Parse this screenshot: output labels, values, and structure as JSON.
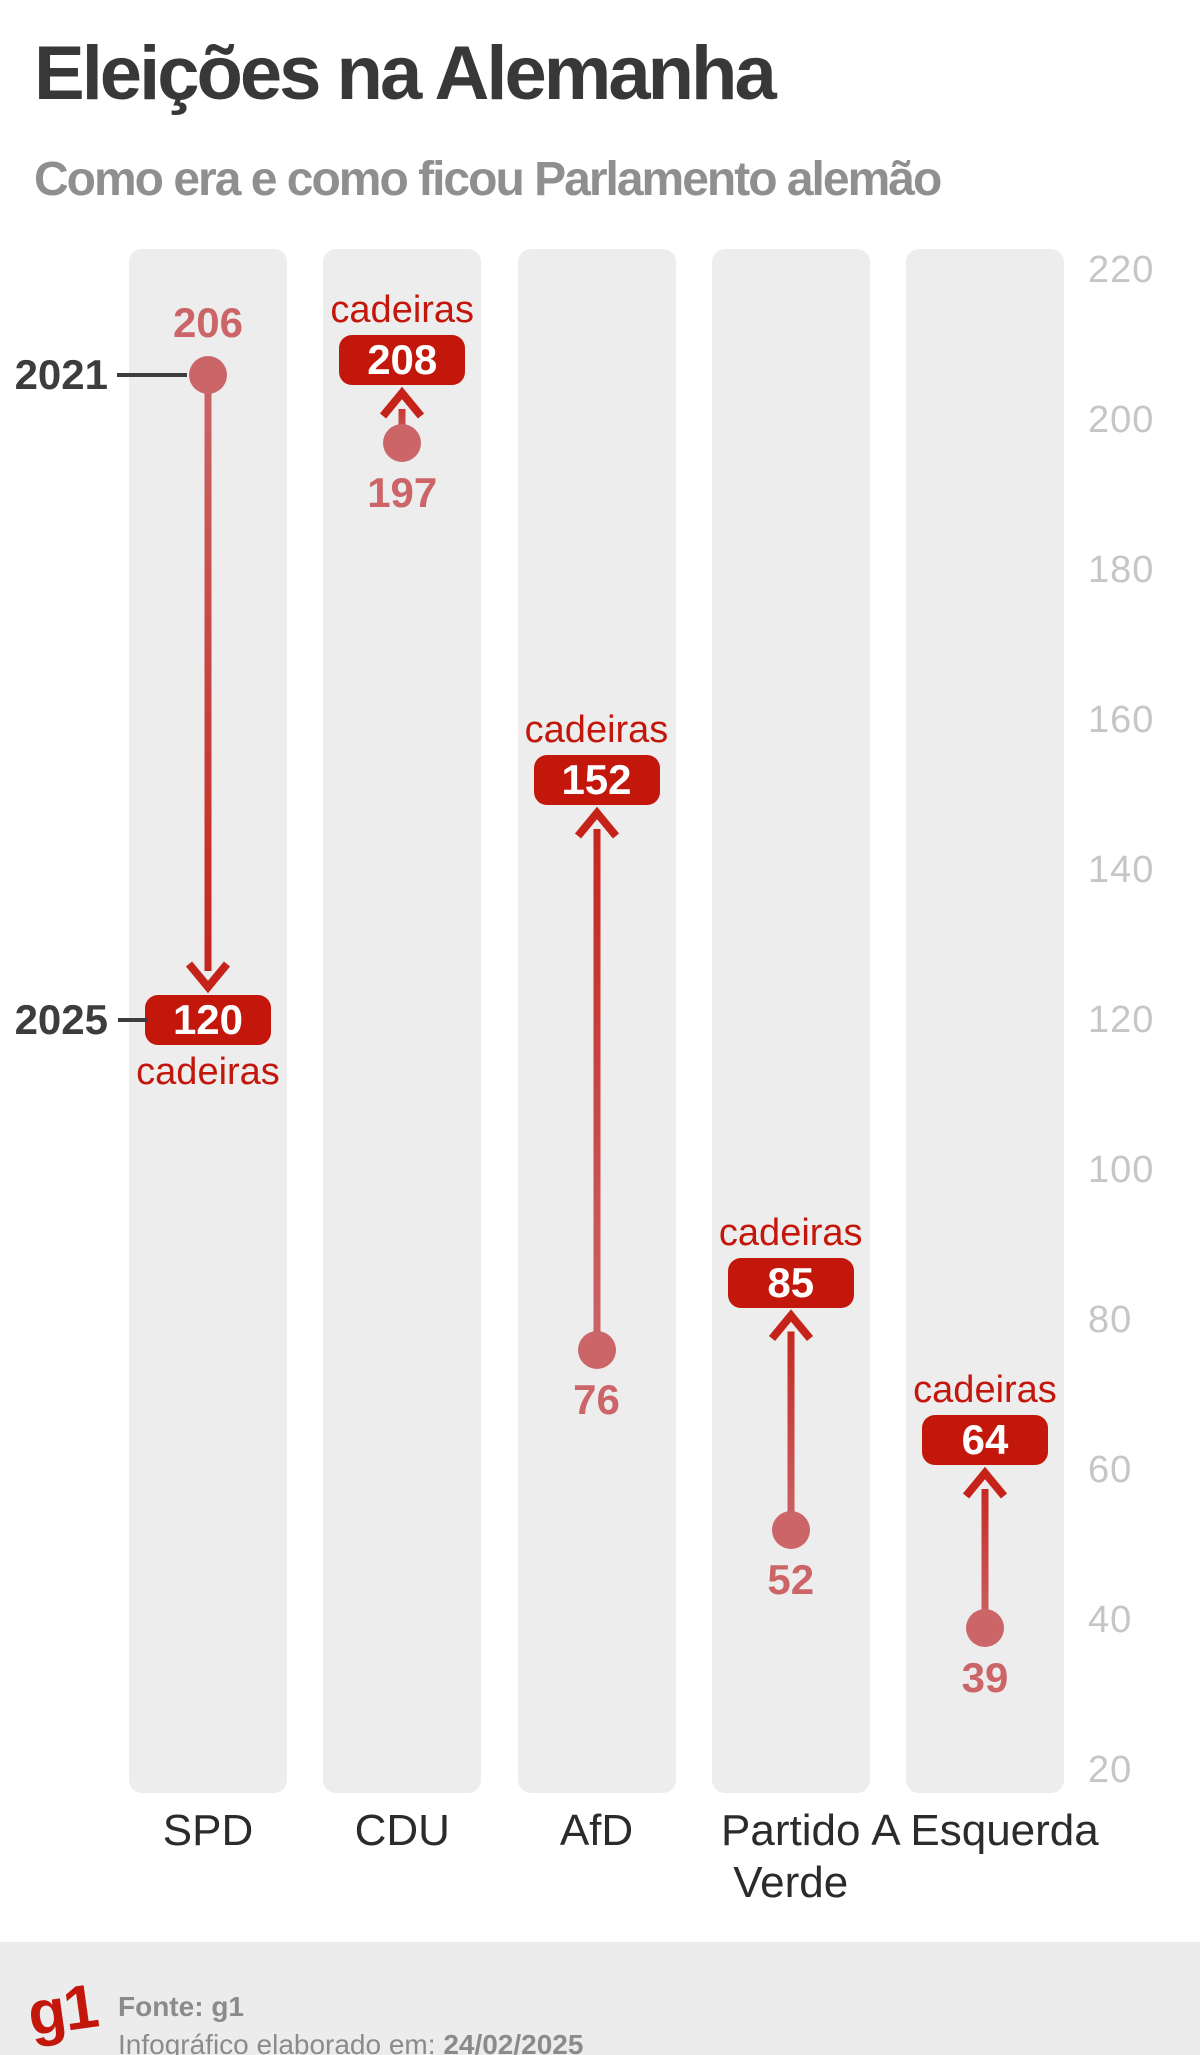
{
  "header": {
    "title": "Eleições na Alemanha",
    "subtitle": "Como era e como ficou Parlamento alemão"
  },
  "chart_data": {
    "type": "scatter",
    "variant": "dumbbell-arrow",
    "title": "Eleições na Alemanha",
    "subtitle": "Como era e como ficou Parlamento alemão",
    "categories": [
      "SPD",
      "CDU",
      "AfD",
      "Partido Verde",
      "A Esquerda"
    ],
    "category_label_lines": [
      [
        "SPD"
      ],
      [
        "CDU"
      ],
      [
        "AfD"
      ],
      [
        "Partido",
        "Verde"
      ],
      [
        "A Esquerda"
      ]
    ],
    "series": [
      {
        "name": "2021",
        "role": "old",
        "values": [
          206,
          197,
          76,
          52,
          39
        ]
      },
      {
        "name": "2025",
        "role": "new",
        "values": [
          120,
          208,
          152,
          85,
          64
        ]
      }
    ],
    "value_unit_label": "cadeiras",
    "ylim": [
      20,
      220
    ],
    "yticks": [
      220,
      200,
      180,
      160,
      140,
      120,
      100,
      80,
      60,
      40,
      20
    ],
    "axis_side": "right",
    "grid": false,
    "legend": false,
    "colors": {
      "old_point": "#cb6568",
      "new_badge": "#c4170c",
      "arrow_red": "#c5231a",
      "unit_label": "#c4170c",
      "axis_tick": "#c6c6c6",
      "column_bg": "#ededed",
      "year_label": "#3d3d3d"
    }
  },
  "annotations": {
    "old_year_label": "2021",
    "new_year_label": "2025"
  },
  "footer": {
    "logo": "g1",
    "source_label": "Fonte:",
    "source_value": "g1",
    "date_label": "Infográfico elaborado em:",
    "date_value": "24/02/2025"
  }
}
